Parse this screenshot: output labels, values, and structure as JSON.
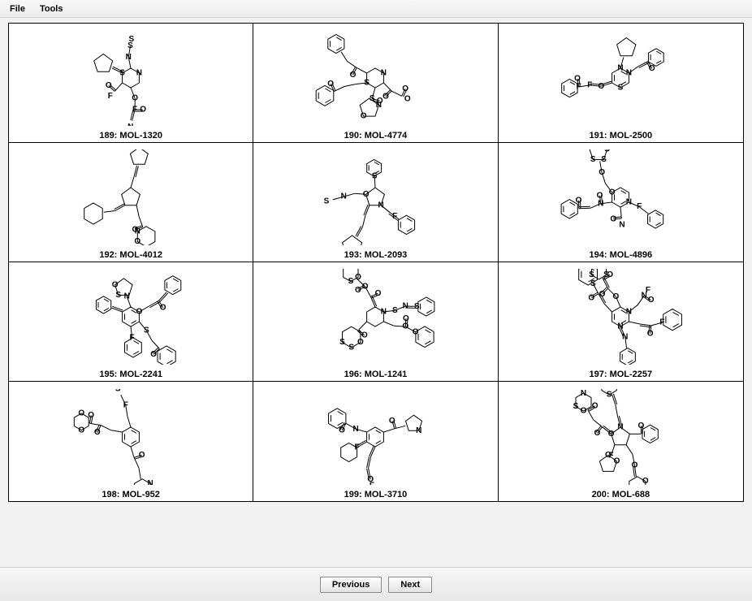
{
  "menu": {
    "file": "File",
    "tools": "Tools"
  },
  "nav": {
    "prev": "Previous",
    "next": "Next"
  },
  "cells": [
    {
      "idx": 189,
      "mol": "MOL-1320"
    },
    {
      "idx": 190,
      "mol": "MOL-4774"
    },
    {
      "idx": 191,
      "mol": "MOL-2500"
    },
    {
      "idx": 192,
      "mol": "MOL-4012"
    },
    {
      "idx": 193,
      "mol": "MOL-2093"
    },
    {
      "idx": 194,
      "mol": "MOL-4896"
    },
    {
      "idx": 195,
      "mol": "MOL-2241"
    },
    {
      "idx": 196,
      "mol": "MOL-1241"
    },
    {
      "idx": 197,
      "mol": "MOL-2257"
    },
    {
      "idx": 198,
      "mol": "MOL-952"
    },
    {
      "idx": 199,
      "mol": "MOL-3710"
    },
    {
      "idx": 200,
      "mol": "MOL-688"
    }
  ]
}
